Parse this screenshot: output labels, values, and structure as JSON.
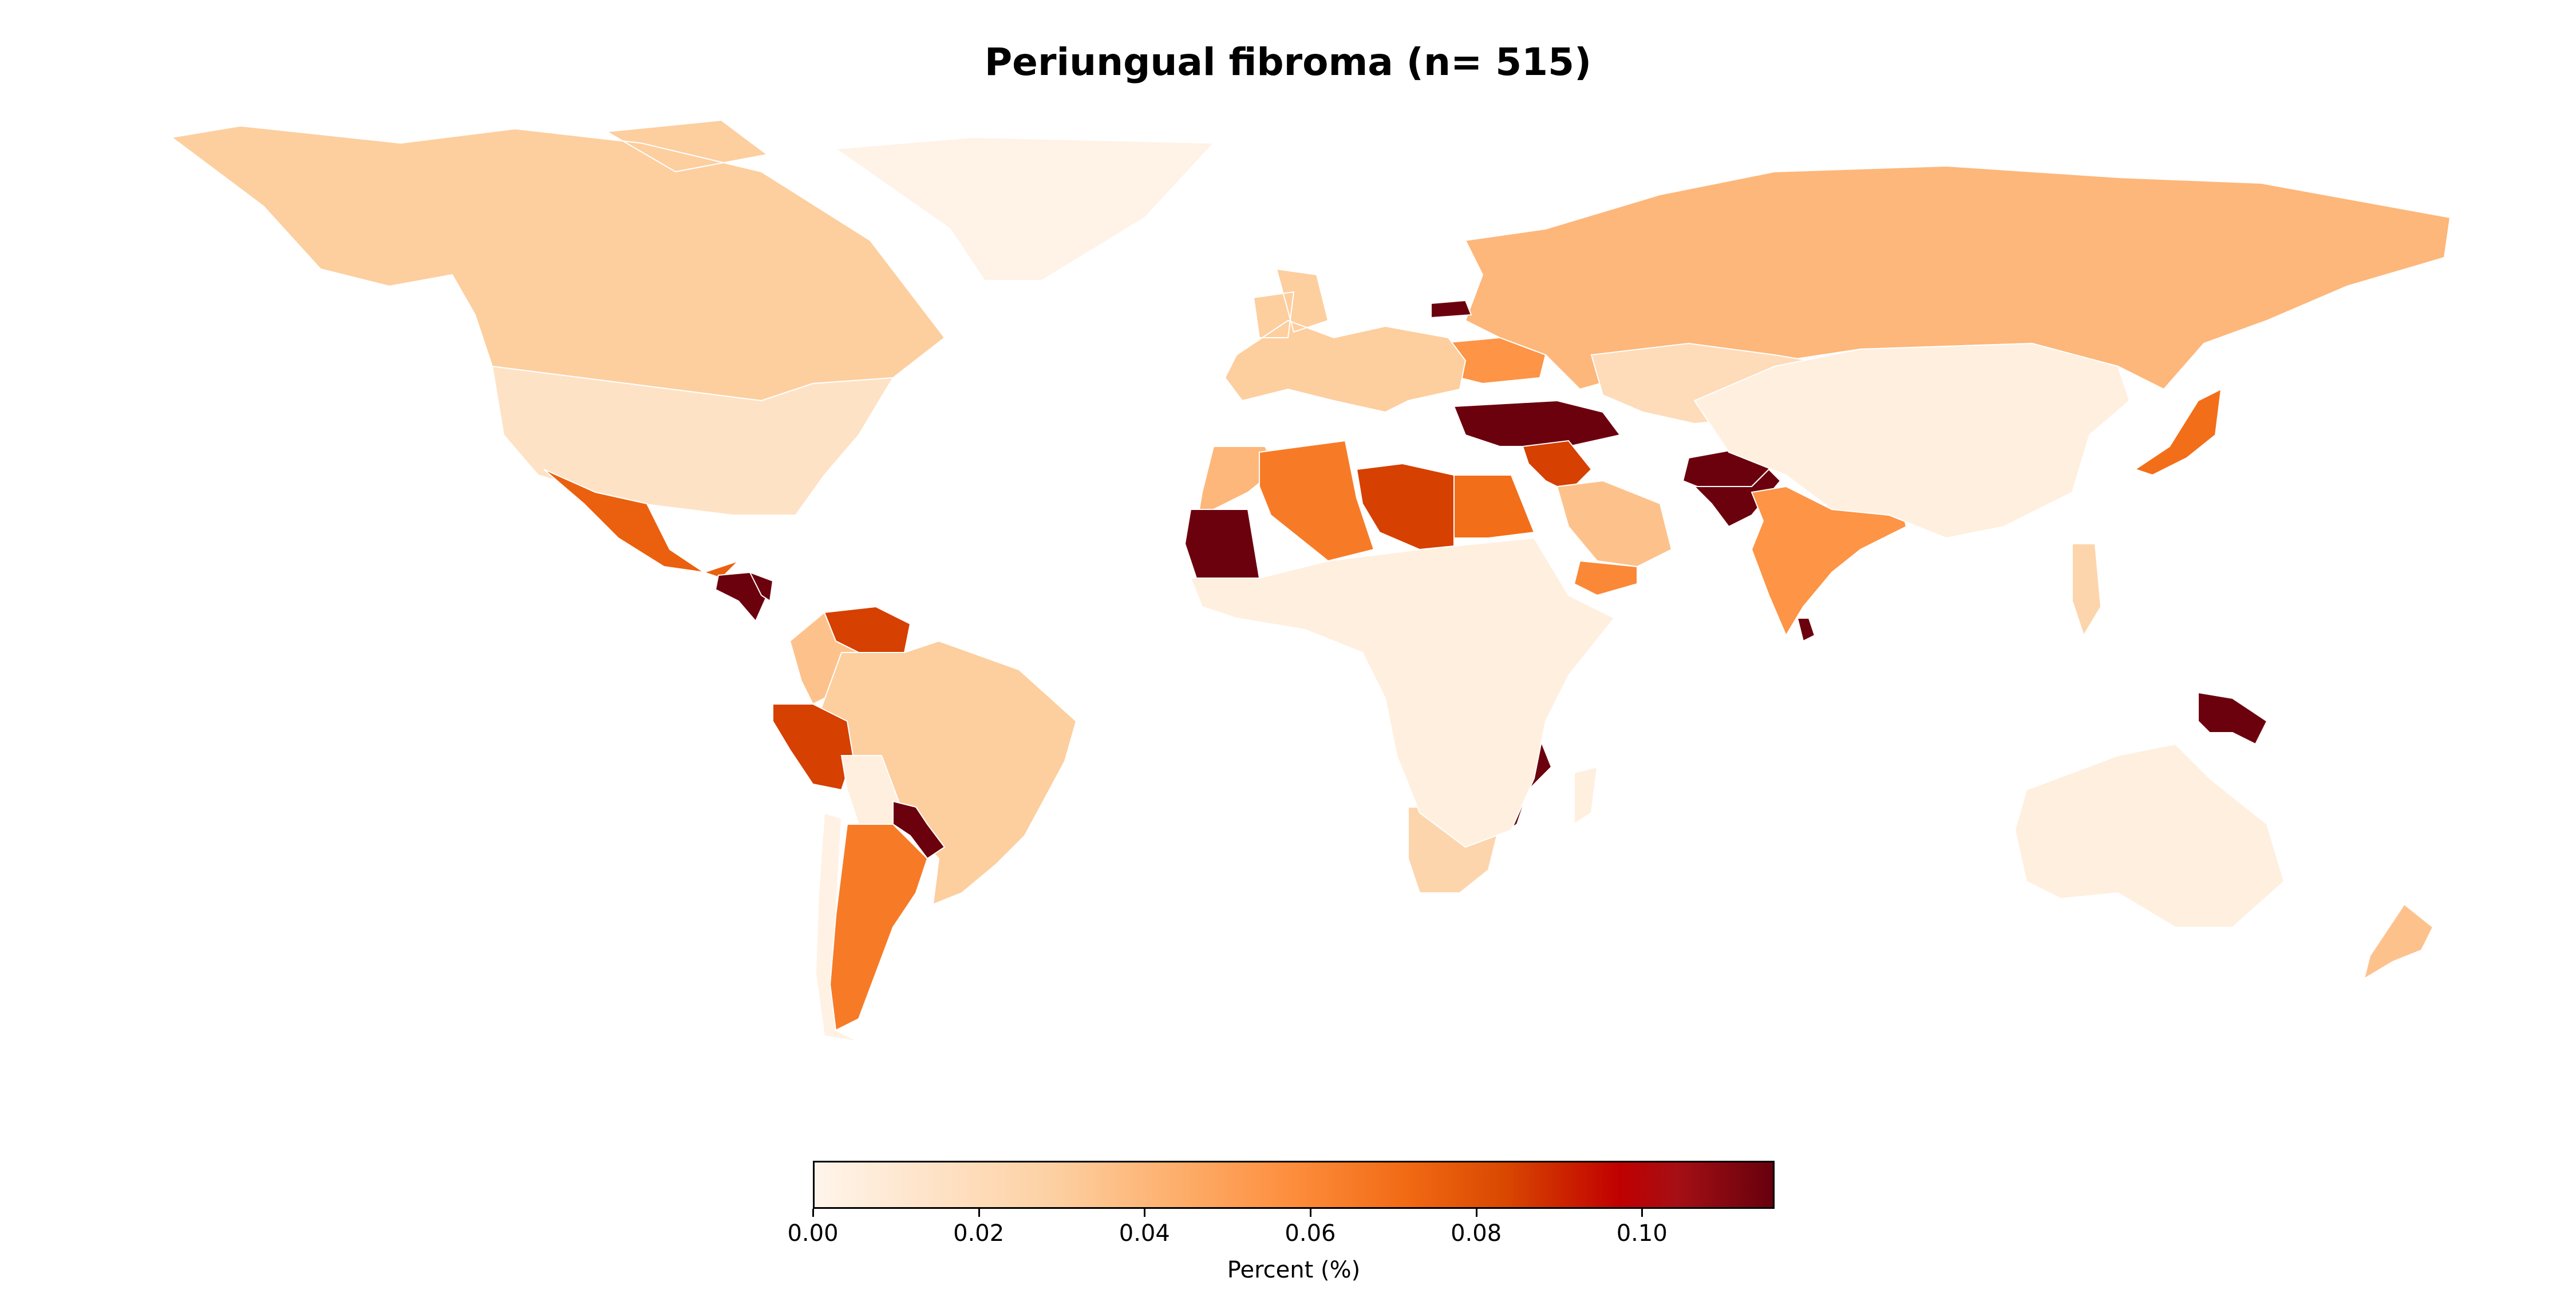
{
  "title": "Periungual fibroma (n= 515)",
  "colorbar": {
    "label": "Percent (%)",
    "min": 0.0,
    "max": 0.116,
    "ticks": [
      "0.00",
      "0.02",
      "0.04",
      "0.06",
      "0.08",
      "0.10"
    ],
    "tick_values": [
      0.0,
      0.02,
      0.04,
      0.06,
      0.08,
      0.1
    ],
    "colormap": "OrRd",
    "colors": {
      "low": "#fff5eb",
      "mid": "#fd8d3c",
      "high": "#67000d"
    }
  },
  "chart_data": {
    "type": "heatmap",
    "title": "Periungual fibroma (n= 515)",
    "value_label": "Percent (%)",
    "range": [
      0.0,
      0.116
    ],
    "regions": [
      {
        "name": "Canada",
        "value": 0.03
      },
      {
        "name": "United States",
        "value": 0.015
      },
      {
        "name": "Greenland",
        "value": 0.002
      },
      {
        "name": "Mexico",
        "value": 0.075
      },
      {
        "name": "Guatemala",
        "value": 0.115
      },
      {
        "name": "Honduras",
        "value": 0.115
      },
      {
        "name": "Venezuela",
        "value": 0.085
      },
      {
        "name": "Colombia",
        "value": 0.035
      },
      {
        "name": "Brazil",
        "value": 0.03
      },
      {
        "name": "Peru",
        "value": 0.085
      },
      {
        "name": "Bolivia",
        "value": 0.005
      },
      {
        "name": "Paraguay",
        "value": 0.115
      },
      {
        "name": "Argentina",
        "value": 0.065
      },
      {
        "name": "Chile",
        "value": 0.003
      },
      {
        "name": "Russia",
        "value": 0.04
      },
      {
        "name": "Latvia",
        "value": 0.115
      },
      {
        "name": "Ukraine",
        "value": 0.055
      },
      {
        "name": "Western Europe",
        "value": 0.03
      },
      {
        "name": "Turkey",
        "value": 0.115
      },
      {
        "name": "Syria",
        "value": 0.085
      },
      {
        "name": "Morocco",
        "value": 0.04
      },
      {
        "name": "Algeria",
        "value": 0.065
      },
      {
        "name": "Libya",
        "value": 0.085
      },
      {
        "name": "Egypt",
        "value": 0.07
      },
      {
        "name": "Mauritania",
        "value": 0.115
      },
      {
        "name": "Saudi Arabia",
        "value": 0.035
      },
      {
        "name": "Yemen",
        "value": 0.06
      },
      {
        "name": "Afghanistan",
        "value": 0.115
      },
      {
        "name": "Pakistan",
        "value": 0.115
      },
      {
        "name": "India",
        "value": 0.055
      },
      {
        "name": "Sri Lanka",
        "value": 0.115
      },
      {
        "name": "Kazakhstan",
        "value": 0.02
      },
      {
        "name": "China",
        "value": 0.005
      },
      {
        "name": "Japan",
        "value": 0.07
      },
      {
        "name": "Philippines",
        "value": 0.025
      },
      {
        "name": "Kenya",
        "value": 0.085
      },
      {
        "name": "Mozambique",
        "value": 0.115
      },
      {
        "name": "South Africa",
        "value": 0.025
      },
      {
        "name": "Sub-Saharan Africa",
        "value": 0.005
      },
      {
        "name": "Papua New Guinea",
        "value": 0.115
      },
      {
        "name": "Australia",
        "value": 0.005
      },
      {
        "name": "New Zealand",
        "value": 0.035
      }
    ]
  }
}
